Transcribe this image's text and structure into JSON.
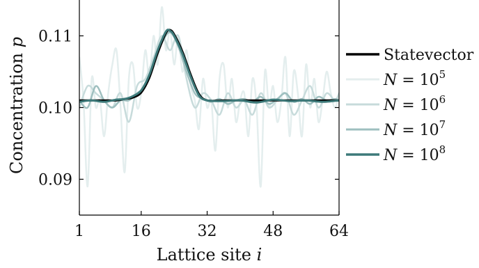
{
  "chart_data": {
    "type": "line",
    "xlabel": "Lattice site i",
    "ylabel": "Concentration p",
    "xlim": [
      1,
      64
    ],
    "ylim": [
      0.085,
      0.115
    ],
    "x_ticks": [
      1,
      16,
      32,
      48,
      64
    ],
    "x_tick_labels": [
      "1",
      "16",
      "32",
      "48",
      "64"
    ],
    "y_ticks": [
      0.09,
      0.1,
      0.11
    ],
    "y_tick_labels": [
      "0.09",
      "0.10",
      "0.11"
    ],
    "grid": false,
    "legend_position": "right",
    "series": [
      {
        "name": "Statevector",
        "color": "#000000",
        "line_width": 3,
        "x": [
          1,
          4,
          7,
          10,
          12,
          14,
          16,
          18,
          20,
          22,
          23,
          24,
          26,
          28,
          30,
          32,
          36,
          40,
          44,
          48,
          52,
          56,
          60,
          64
        ],
        "y": [
          0.101,
          0.101,
          0.101,
          0.101,
          0.1012,
          0.1014,
          0.1021,
          0.1042,
          0.1076,
          0.1104,
          0.1108,
          0.1102,
          0.1078,
          0.1046,
          0.1019,
          0.101,
          0.101,
          0.101,
          0.101,
          0.101,
          0.101,
          0.101,
          0.101,
          0.101
        ]
      },
      {
        "name": "N = 10^5",
        "color": "#e4eeee",
        "line_width": 2.5,
        "x": [
          1,
          2,
          3,
          4,
          5,
          6,
          7,
          8,
          9,
          10,
          11,
          12,
          13,
          14,
          15,
          16,
          17,
          18,
          19,
          20,
          21,
          22,
          23,
          24,
          25,
          26,
          27,
          28,
          29,
          30,
          31,
          32,
          33,
          34,
          35,
          36,
          37,
          38,
          39,
          40,
          41,
          42,
          43,
          44,
          45,
          46,
          47,
          48,
          49,
          50,
          51,
          52,
          53,
          54,
          55,
          56,
          57,
          58,
          59,
          60,
          61,
          62,
          63,
          64
        ],
        "y": [
          0.107,
          0.101,
          0.089,
          0.104,
          0.1,
          0.101,
          0.096,
          0.102,
          0.106,
          0.108,
          0.1,
          0.091,
          0.104,
          0.106,
          0.1,
          0.102,
          0.108,
          0.104,
          0.11,
          0.106,
          0.114,
          0.108,
          0.111,
          0.106,
          0.11,
          0.105,
          0.108,
          0.103,
          0.101,
          0.097,
          0.104,
          0.1,
          0.101,
          0.094,
          0.104,
          0.106,
          0.1,
          0.104,
          0.098,
          0.101,
          0.102,
          0.096,
          0.104,
          0.1,
          0.089,
          0.105,
          0.1,
          0.103,
          0.098,
          0.101,
          0.107,
          0.096,
          0.105,
          0.102,
          0.096,
          0.106,
          0.1,
          0.104,
          0.098,
          0.101,
          0.105,
          0.102,
          0.1,
          0.102
        ]
      },
      {
        "name": "N = 10^6",
        "color": "#c7dbdb",
        "line_width": 2.5,
        "x": [
          1,
          3,
          5,
          7,
          9,
          11,
          13,
          15,
          17,
          19,
          21,
          23,
          25,
          27,
          29,
          31,
          33,
          35,
          37,
          39,
          41,
          43,
          45,
          47,
          49,
          51,
          53,
          55,
          57,
          59,
          61,
          63,
          64
        ],
        "y": [
          0.1,
          0.103,
          0.102,
          0.101,
          0.1,
          0.102,
          0.098,
          0.103,
          0.104,
          0.107,
          0.11,
          0.108,
          0.11,
          0.104,
          0.1,
          0.102,
          0.101,
          0.099,
          0.102,
          0.1,
          0.101,
          0.099,
          0.102,
          0.1,
          0.101,
          0.102,
          0.099,
          0.101,
          0.103,
          0.1,
          0.102,
          0.101,
          0.102
        ]
      },
      {
        "name": "N = 10^7",
        "color": "#9ebfbf",
        "line_width": 2.5,
        "x": [
          1,
          3,
          5,
          7,
          9,
          11,
          13,
          15,
          17,
          19,
          21,
          23,
          25,
          27,
          29,
          31,
          33,
          35,
          37,
          39,
          41,
          43,
          45,
          47,
          49,
          51,
          53,
          55,
          57,
          59,
          61,
          63,
          64
        ],
        "y": [
          0.101,
          0.1,
          0.103,
          0.101,
          0.1,
          0.101,
          0.101,
          0.102,
          0.103,
          0.106,
          0.109,
          0.1105,
          0.1085,
          0.105,
          0.102,
          0.1012,
          0.1008,
          0.1012,
          0.1005,
          0.101,
          0.1012,
          0.1008,
          0.1015,
          0.1005,
          0.1012,
          0.102,
          0.1008,
          0.1012,
          0.1005,
          0.1015,
          0.101,
          0.1012,
          0.101
        ]
      },
      {
        "name": "N = 10^8",
        "color": "#3d7a7a",
        "line_width": 3,
        "x": [
          1,
          4,
          7,
          10,
          12,
          14,
          16,
          18,
          20,
          22,
          23,
          24,
          26,
          28,
          30,
          32,
          36,
          40,
          44,
          48,
          52,
          56,
          60,
          64
        ],
        "y": [
          0.1008,
          0.101,
          0.1008,
          0.1011,
          0.1012,
          0.1016,
          0.1024,
          0.1046,
          0.108,
          0.1106,
          0.1107,
          0.11,
          0.1075,
          0.1043,
          0.1017,
          0.101,
          0.1009,
          0.101,
          0.1007,
          0.1011,
          0.1009,
          0.101,
          0.1008,
          0.101
        ]
      }
    ]
  },
  "legend": [
    {
      "prefix": "",
      "math": "",
      "sup": "",
      "text": "Statevector"
    },
    {
      "prefix": "N",
      "math": " = 10",
      "sup": "5",
      "text": ""
    },
    {
      "prefix": "N",
      "math": " = 10",
      "sup": "6",
      "text": ""
    },
    {
      "prefix": "N",
      "math": " = 10",
      "sup": "7",
      "text": ""
    },
    {
      "prefix": "N",
      "math": " = 10",
      "sup": "8",
      "text": ""
    }
  ],
  "axis_text": {
    "xlabel_main": "Lattice site ",
    "xlabel_var": "i",
    "ylabel_main": "Concentration ",
    "ylabel_var": "p"
  }
}
